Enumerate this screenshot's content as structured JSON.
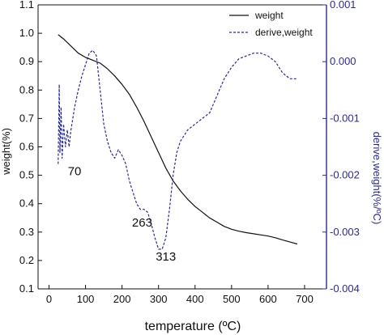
{
  "chart_data": {
    "type": "line",
    "xlabel": "temperature (ºC)",
    "ylabel": "weight(%)",
    "ylabel_right": "derive,weight(%/ºC)",
    "xlim": [
      -30,
      760
    ],
    "ylim": [
      0.1,
      1.1
    ],
    "y2lim": [
      -0.004,
      0.001
    ],
    "xticks": [
      "0",
      "100",
      "200",
      "300",
      "400",
      "500",
      "600",
      "700"
    ],
    "yticks": [
      "0.1",
      "0.2",
      "0.3",
      "0.4",
      "0.5",
      "0.6",
      "0.7",
      "0.8",
      "0.9",
      "1.0",
      "1.1"
    ],
    "y2ticks": [
      "-0.004",
      "-0.003",
      "-0.002",
      "-0.001",
      "0.000",
      "0.001"
    ],
    "legend_position": "top-right",
    "colors": {
      "weight": "#111111",
      "derivative": "#2b2b8f",
      "right_axis": "#2b2b8f"
    },
    "series": [
      {
        "name": "weight",
        "axis": "left",
        "style": "solid",
        "x": [
          25,
          40,
          60,
          80,
          100,
          120,
          140,
          160,
          180,
          200,
          220,
          240,
          260,
          280,
          300,
          320,
          340,
          360,
          380,
          400,
          420,
          440,
          460,
          480,
          500,
          520,
          540,
          560,
          580,
          600,
          620,
          640,
          660,
          680
        ],
        "y": [
          0.995,
          0.98,
          0.955,
          0.93,
          0.915,
          0.905,
          0.895,
          0.875,
          0.85,
          0.82,
          0.785,
          0.74,
          0.69,
          0.635,
          0.58,
          0.525,
          0.48,
          0.445,
          0.415,
          0.39,
          0.37,
          0.35,
          0.335,
          0.32,
          0.31,
          0.303,
          0.298,
          0.294,
          0.29,
          0.286,
          0.28,
          0.272,
          0.265,
          0.258
        ]
      },
      {
        "name": "derive,weight",
        "axis": "right",
        "style": "dashed",
        "x": [
          25,
          28,
          30,
          33,
          36,
          40,
          45,
          50,
          55,
          60,
          70,
          80,
          90,
          100,
          110,
          120,
          130,
          140,
          150,
          160,
          170,
          180,
          190,
          200,
          210,
          220,
          230,
          240,
          250,
          260,
          270,
          280,
          290,
          300,
          310,
          320,
          330,
          340,
          350,
          360,
          380,
          400,
          420,
          440,
          460,
          480,
          500,
          520,
          540,
          560,
          580,
          600,
          620,
          640,
          660,
          680
        ],
        "y": [
          -0.0018,
          -0.0004,
          -0.0016,
          -0.0008,
          -0.0017,
          -0.0011,
          -0.0015,
          -0.0012,
          -0.0015,
          -0.0012,
          -0.0008,
          -0.0005,
          -0.00025,
          -5e-05,
          0.00015,
          0.0002,
          0.0001,
          -0.0005,
          -0.0011,
          -0.0014,
          -0.0016,
          -0.0017,
          -0.00155,
          -0.00165,
          -0.0018,
          -0.0021,
          -0.0023,
          -0.0025,
          -0.0026,
          -0.0026,
          -0.00265,
          -0.00285,
          -0.0031,
          -0.0033,
          -0.0033,
          -0.0031,
          -0.0026,
          -0.002,
          -0.0016,
          -0.0014,
          -0.0012,
          -0.0011,
          -0.001,
          -0.0009,
          -0.0006,
          -0.0003,
          -0.0001,
          5e-05,
          0.0001,
          0.00015,
          0.00015,
          0.0001,
          0.0,
          -0.0002,
          -0.0003,
          -0.0003
        ]
      }
    ],
    "annotations": [
      {
        "text": "70",
        "x": 70,
        "y2": -0.002
      },
      {
        "text": "263",
        "x": 255,
        "y2": -0.0029
      },
      {
        "text": "313",
        "x": 320,
        "y2": -0.0035
      }
    ]
  }
}
